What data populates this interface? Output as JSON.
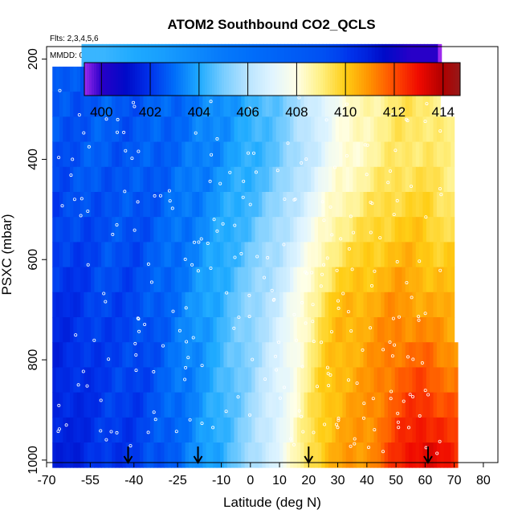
{
  "chart_data": {
    "type": "heatmap",
    "title": "ATOM2 Southbound CO2_QCLS",
    "flights_note": "Flts: 2,3,4,5,6",
    "dates_note": "MMDD: 0129,0201,0203,0205,0210",
    "xlabel": "Latitude (deg N)",
    "ylabel": "PSXC (mbar)",
    "xlim": [
      -70,
      85
    ],
    "ylim": [
      1005,
      175
    ],
    "x_ticks": [
      -70,
      -55,
      -40,
      -25,
      -10,
      0,
      10,
      20,
      30,
      40,
      50,
      60,
      70,
      80
    ],
    "y_ticks": [
      200,
      400,
      600,
      800,
      1000
    ],
    "colorbar": {
      "range": [
        399.3,
        414.7
      ],
      "ticks": [
        400,
        402,
        404,
        406,
        408,
        410,
        412,
        414
      ]
    },
    "field_profiles": {
      "lat": [
        -68,
        -58,
        -50,
        -40,
        -30,
        -20,
        -10,
        0,
        10,
        15,
        20,
        25,
        30,
        40,
        50,
        55,
        60,
        65,
        71
      ],
      "co2_near_surface": [
        401.4,
        401.7,
        402.0,
        402.1,
        402.6,
        403.3,
        404.2,
        405.5,
        407.3,
        408.3,
        409.4,
        410.2,
        410.6,
        411.0,
        412.4,
        413.0,
        413.5,
        413.0,
        412.4
      ],
      "co2_mid_troposphere": [
        401.8,
        402.0,
        402.3,
        402.3,
        402.8,
        403.5,
        404.3,
        405.3,
        406.6,
        407.6,
        408.6,
        409.6,
        410.2,
        410.6,
        411.0,
        410.9,
        410.7,
        410.5,
        410.4
      ],
      "co2_upper_troposphere": [
        402.5,
        402.6,
        402.7,
        402.6,
        402.8,
        403.1,
        403.6,
        404.1,
        404.9,
        405.5,
        406.2,
        407.0,
        407.8,
        408.6,
        409.2,
        409.3,
        409.3,
        409.0,
        408.8
      ],
      "co2_top_layer": [
        null,
        null,
        404.3,
        404.0,
        403.8,
        403.5,
        403.2,
        403.0,
        402.8,
        402.7,
        402.6,
        402.5,
        402.3,
        401.6,
        400.6,
        400.0,
        400.0,
        null,
        null
      ]
    },
    "top_layer_lat_range": [
      -58,
      65
    ],
    "profile_markers_lat": [
      -42,
      -18,
      20,
      61
    ]
  }
}
